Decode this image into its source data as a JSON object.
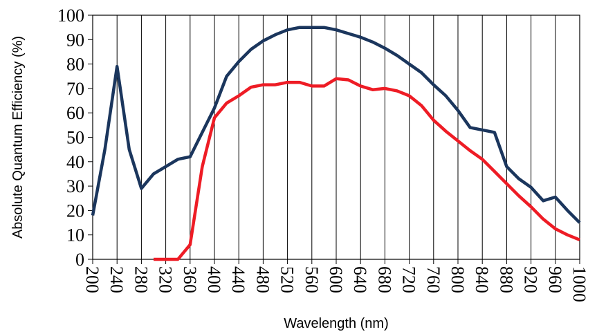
{
  "chart_data": {
    "type": "line",
    "xlabel": "Wavelength (nm)",
    "ylabel": "Absolute Quantum Efficiency (%)",
    "xlim": [
      200,
      1000
    ],
    "ylim": [
      0,
      100
    ],
    "xticks": [
      "200",
      "240",
      "280",
      "320",
      "360",
      "400",
      "440",
      "480",
      "520",
      "560",
      "600",
      "640",
      "680",
      "720",
      "760",
      "800",
      "840",
      "880",
      "920",
      "960",
      "1000"
    ],
    "yticks": [
      "0",
      "10",
      "20",
      "30",
      "40",
      "50",
      "60",
      "70",
      "80",
      "90",
      "100"
    ],
    "grid": "vertical",
    "legend": "none",
    "series": [
      {
        "color": "#1b365d",
        "points": [
          [
            200,
            18
          ],
          [
            220,
            45
          ],
          [
            240,
            79
          ],
          [
            260,
            45
          ],
          [
            280,
            29
          ],
          [
            300,
            35
          ],
          [
            320,
            38
          ],
          [
            340,
            41
          ],
          [
            360,
            42
          ],
          [
            380,
            52
          ],
          [
            400,
            62
          ],
          [
            420,
            75
          ],
          [
            440,
            81
          ],
          [
            460,
            86
          ],
          [
            480,
            89.5
          ],
          [
            500,
            92
          ],
          [
            520,
            94
          ],
          [
            540,
            95
          ],
          [
            560,
            95
          ],
          [
            580,
            95
          ],
          [
            600,
            94
          ],
          [
            620,
            92.5
          ],
          [
            640,
            91
          ],
          [
            660,
            89
          ],
          [
            680,
            86.5
          ],
          [
            700,
            83.5
          ],
          [
            720,
            80
          ],
          [
            740,
            76.5
          ],
          [
            760,
            71.5
          ],
          [
            780,
            67
          ],
          [
            800,
            61
          ],
          [
            820,
            54
          ],
          [
            840,
            53
          ],
          [
            860,
            52
          ],
          [
            880,
            38
          ],
          [
            900,
            33
          ],
          [
            920,
            29.5
          ],
          [
            940,
            24
          ],
          [
            960,
            25.5
          ],
          [
            980,
            20
          ],
          [
            1000,
            15
          ]
        ]
      },
      {
        "color": "#ee1c25",
        "points": [
          [
            300,
            0
          ],
          [
            320,
            0
          ],
          [
            340,
            0
          ],
          [
            360,
            6
          ],
          [
            380,
            38
          ],
          [
            400,
            58
          ],
          [
            420,
            64
          ],
          [
            440,
            67
          ],
          [
            460,
            70.5
          ],
          [
            480,
            71.5
          ],
          [
            500,
            71.5
          ],
          [
            520,
            72.5
          ],
          [
            540,
            72.5
          ],
          [
            560,
            71
          ],
          [
            580,
            71
          ],
          [
            600,
            74
          ],
          [
            620,
            73.5
          ],
          [
            640,
            71
          ],
          [
            660,
            69.5
          ],
          [
            680,
            70
          ],
          [
            700,
            69
          ],
          [
            720,
            67
          ],
          [
            740,
            63
          ],
          [
            760,
            57
          ],
          [
            780,
            52.5
          ],
          [
            800,
            48.5
          ],
          [
            820,
            44.5
          ],
          [
            840,
            41
          ],
          [
            860,
            36
          ],
          [
            880,
            31
          ],
          [
            900,
            26
          ],
          [
            920,
            21.5
          ],
          [
            940,
            16.5
          ],
          [
            960,
            12.5
          ],
          [
            980,
            10
          ],
          [
            1000,
            8
          ]
        ]
      }
    ]
  }
}
